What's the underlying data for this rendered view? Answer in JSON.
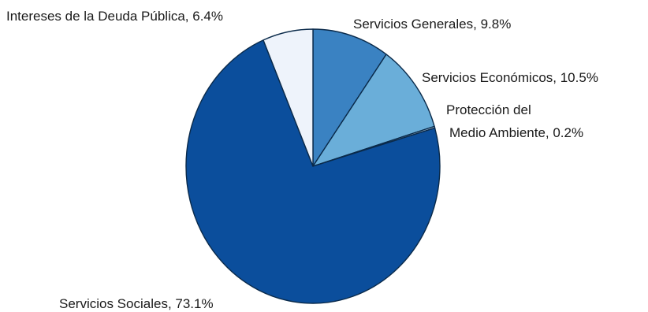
{
  "chart_data": {
    "type": "pie",
    "title": "",
    "start_angle_deg": 90,
    "direction": "clockwise",
    "slices": [
      {
        "label": "Servicios Generales",
        "value": 9.8,
        "display": "Servicios Generales, 9.8%",
        "color": "#3a82c2"
      },
      {
        "label": "Servicios Económicos",
        "value": 10.5,
        "display": "Servicios Económicos, 10.5%",
        "color": "#6aaed9"
      },
      {
        "label": "Protección del Medio Ambiente",
        "value": 0.2,
        "display_lines": [
          "Protección del",
          "Medio Ambiente, 0.2%"
        ],
        "color": "#b9d7ee"
      },
      {
        "label": "Servicios Sociales",
        "value": 73.1,
        "display": "Servicios Sociales, 73.1%",
        "color": "#0b4e9c"
      },
      {
        "label": "Intereses de la Deuda Pública",
        "value": 6.4,
        "display": "Intereses de la Deuda Pública, 6.4%",
        "color": "#eef3fb"
      }
    ]
  }
}
